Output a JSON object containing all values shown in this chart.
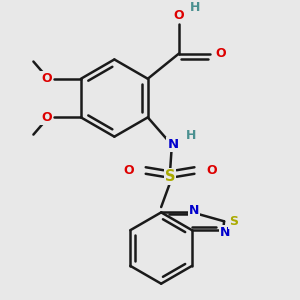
{
  "bg_color": "#e8e8e8",
  "bond_color": "#1a1a1a",
  "bw": 1.8,
  "colors": {
    "O": "#dd0000",
    "N": "#0000cc",
    "S_btd": "#aaaa00",
    "S_so2": "#aaaa00",
    "H": "#4a9090",
    "C": "#1a1a1a"
  }
}
